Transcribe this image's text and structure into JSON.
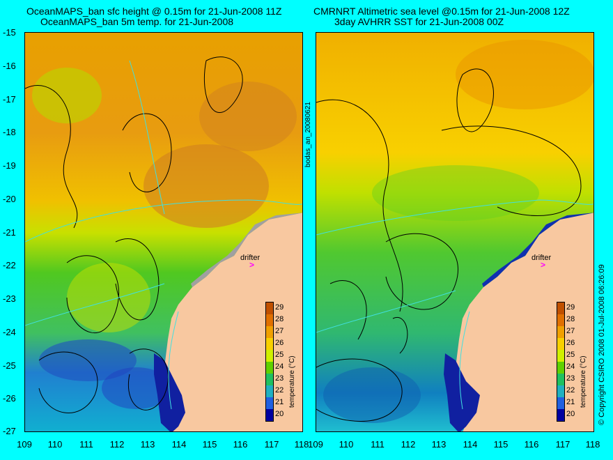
{
  "panels": [
    {
      "title_line1": "OceanMAPS_ban sfc height @ 0.15m for 21-Jun-2008 11Z",
      "title_line2": "OceanMAPS_ban 5m temp. for 21-Jun-2008",
      "drifter_label": "drifter"
    },
    {
      "title_line1": "CMRNRT Altimetric sea level  @0.15m  for 21-Jun-2008 12Z",
      "title_line2": "3day AVHRR SST for 21-Jun-2008 00Z",
      "drifter_label": "drifter"
    }
  ],
  "map_extent": {
    "lon_range": [
      109,
      118
    ],
    "lat_range": [
      -27,
      -15
    ]
  },
  "y_ticks": [
    "-15",
    "-16",
    "-17",
    "-18",
    "-19",
    "-20",
    "-21",
    "-22",
    "-23",
    "-24",
    "-25",
    "-26",
    "-27"
  ],
  "x_ticks_left": [
    "109",
    "110",
    "111",
    "112",
    "113",
    "114",
    "115",
    "116",
    "117",
    "118"
  ],
  "x_ticks_right": [
    "109",
    "110",
    "111",
    "112",
    "113",
    "114",
    "115",
    "116",
    "117",
    "118"
  ],
  "colorbar": {
    "title": "temperature (°C)",
    "ticks": [
      "29",
      "28",
      "27",
      "26",
      "25",
      "24",
      "23",
      "22",
      "21",
      "20"
    ],
    "range": [
      19.5,
      29.5
    ],
    "colors": [
      "#c05000",
      "#e07000",
      "#f0a000",
      "#f8d000",
      "#d0f000",
      "#60d000",
      "#20c060",
      "#20b0c0",
      "#2060e0",
      "#0000a0"
    ]
  },
  "center_label": "bodas_an_20080621",
  "copyright": "© Copyright CSIRO 2008   01-Jul-2008 06:26:09",
  "colors": {
    "background": "#00ffff",
    "land": "#f8c8a0",
    "drifter": "#ff00ff",
    "contour": "#000000",
    "bathymetry": "#40e0e0"
  }
}
